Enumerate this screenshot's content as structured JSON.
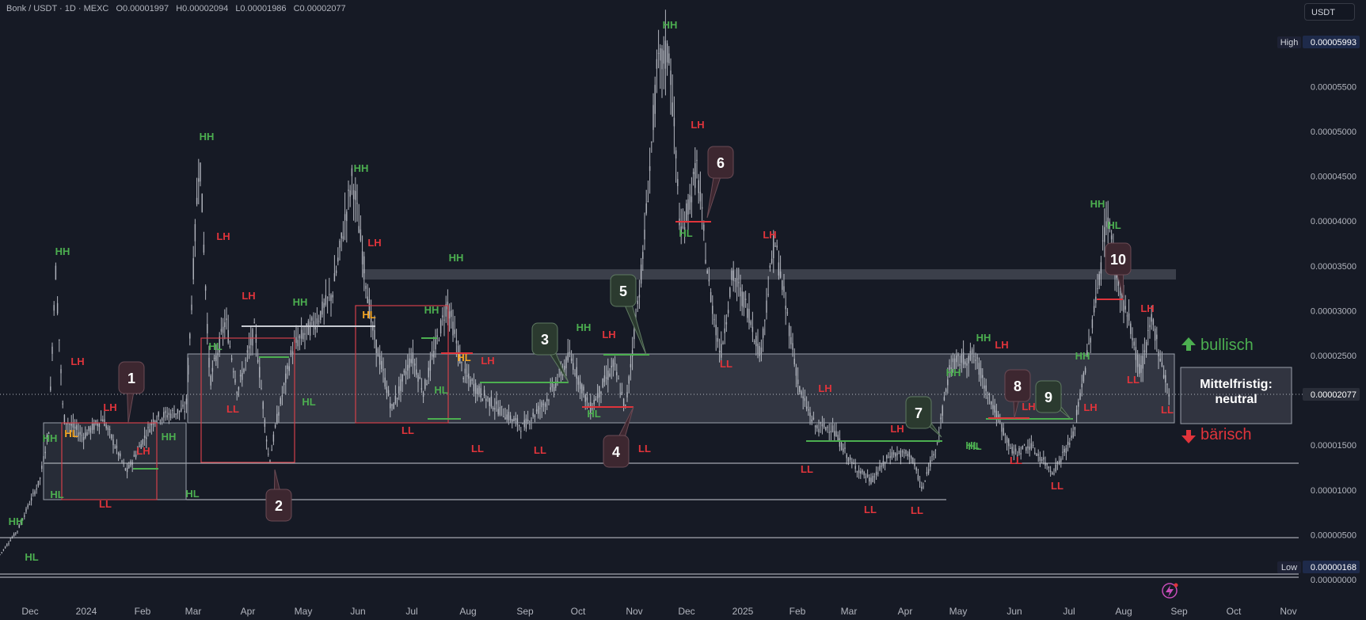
{
  "header": {
    "symbol": "Bonk / USDT · 1D · MEXC",
    "open": "O0.00001997",
    "high": "H0.00002094",
    "low": "L0.00001986",
    "close": "C0.00002077"
  },
  "currency_button": "USDT",
  "price_axis": {
    "ticks": [
      {
        "v": 5.5,
        "label": "0.00005500"
      },
      {
        "v": 5.0,
        "label": "0.00005000"
      },
      {
        "v": 4.5,
        "label": "0.00004500"
      },
      {
        "v": 4.0,
        "label": "0.00004000"
      },
      {
        "v": 3.5,
        "label": "0.00003500"
      },
      {
        "v": 3.0,
        "label": "0.00003000"
      },
      {
        "v": 2.5,
        "label": "0.00002500"
      },
      {
        "v": 1.5,
        "label": "0.00001500"
      },
      {
        "v": 1.0,
        "label": "0.00001000"
      },
      {
        "v": 0.5,
        "label": "0.00000500"
      },
      {
        "v": 0.0,
        "label": "0.00000000"
      }
    ],
    "high": {
      "tag": "High",
      "label": "0.00005993",
      "v": 5.993
    },
    "low": {
      "tag": "Low",
      "label": "0.00000168",
      "v": 0.168
    },
    "last": {
      "label": "0.00002077",
      "v": 2.077
    }
  },
  "time_axis": [
    "Dec",
    "2024",
    "Feb",
    "Mar",
    "Apr",
    "May",
    "Jun",
    "Jul",
    "Aug",
    "Sep",
    "Oct",
    "Nov",
    "Dec",
    "2025",
    "Feb",
    "Mar",
    "Apr",
    "May",
    "Jun",
    "Jul",
    "Aug",
    "Sep",
    "Oct",
    "Nov"
  ],
  "colors": {
    "green": "#4caf50",
    "red": "#e0343b",
    "orange": "#f5a623",
    "bg": "#161a25",
    "candle": "#b2b5be"
  },
  "pivots": [
    {
      "t": "HH",
      "c": "g"
    },
    {
      "t": "HL",
      "c": "g"
    },
    {
      "t": "HH",
      "c": "g"
    },
    {
      "t": "HH",
      "c": "g"
    },
    {
      "t": "HL",
      "c": "g"
    },
    {
      "t": "LH",
      "c": "r"
    },
    {
      "t": "HL",
      "c": "o"
    },
    {
      "t": "LH",
      "c": "r"
    },
    {
      "t": "LL",
      "c": "r"
    },
    {
      "t": "LH",
      "c": "r"
    },
    {
      "t": "HH",
      "c": "g"
    },
    {
      "t": "HL",
      "c": "g"
    },
    {
      "t": "HH",
      "c": "g"
    },
    {
      "t": "LH",
      "c": "r"
    },
    {
      "t": "HL",
      "c": "g"
    },
    {
      "t": "LH",
      "c": "r"
    },
    {
      "t": "LL",
      "c": "r"
    },
    {
      "t": "HH",
      "c": "g"
    },
    {
      "t": "HL",
      "c": "g"
    },
    {
      "t": "HH",
      "c": "g"
    },
    {
      "t": "LH",
      "c": "r"
    },
    {
      "t": "HL",
      "c": "o"
    },
    {
      "t": "LL",
      "c": "r"
    },
    {
      "t": "HH",
      "c": "g"
    },
    {
      "t": "HH",
      "c": "g"
    },
    {
      "t": "HL",
      "c": "g"
    },
    {
      "t": "HL",
      "c": "o"
    },
    {
      "t": "LH",
      "c": "r"
    },
    {
      "t": "LL",
      "c": "r"
    },
    {
      "t": "LL",
      "c": "r"
    },
    {
      "t": "HH",
      "c": "g"
    },
    {
      "t": "LH",
      "c": "r"
    },
    {
      "t": "HL",
      "c": "g"
    },
    {
      "t": "LL",
      "c": "r"
    },
    {
      "t": "HH",
      "c": "g"
    },
    {
      "t": "LH",
      "c": "r"
    },
    {
      "t": "HL",
      "c": "g"
    },
    {
      "t": "LL",
      "c": "r"
    },
    {
      "t": "LH",
      "c": "r"
    },
    {
      "t": "LH",
      "c": "r"
    },
    {
      "t": "LL",
      "c": "r"
    },
    {
      "t": "LL",
      "c": "r"
    },
    {
      "t": "LH",
      "c": "r"
    },
    {
      "t": "LL",
      "c": "r"
    },
    {
      "t": "HH",
      "c": "g"
    },
    {
      "t": "HL",
      "c": "g"
    },
    {
      "t": "HH",
      "c": "g"
    },
    {
      "t": "LH",
      "c": "r"
    },
    {
      "t": "HL",
      "c": "g"
    },
    {
      "t": "LH",
      "c": "r"
    },
    {
      "t": "LL",
      "c": "r"
    },
    {
      "t": "HH",
      "c": "g"
    },
    {
      "t": "HL",
      "c": "g"
    },
    {
      "t": "LL",
      "c": "r"
    },
    {
      "t": "HH",
      "c": "g"
    },
    {
      "t": "LH",
      "c": "r"
    },
    {
      "t": "LH",
      "c": "r"
    },
    {
      "t": "LL",
      "c": "r"
    },
    {
      "t": "LL",
      "c": "r"
    }
  ],
  "callouts": [
    {
      "n": "1",
      "c": "r"
    },
    {
      "n": "2",
      "c": "r"
    },
    {
      "n": "3",
      "c": "g"
    },
    {
      "n": "4",
      "c": "r"
    },
    {
      "n": "5",
      "c": "g"
    },
    {
      "n": "6",
      "c": "r"
    },
    {
      "n": "7",
      "c": "g"
    },
    {
      "n": "8",
      "c": "r"
    },
    {
      "n": "9",
      "c": "g"
    },
    {
      "n": "10",
      "c": "r"
    }
  ],
  "outlook": {
    "bullish": "bullisch",
    "bearish": "bärisch",
    "box_line1": "Mittelfristig:",
    "box_line2": "neutral"
  }
}
